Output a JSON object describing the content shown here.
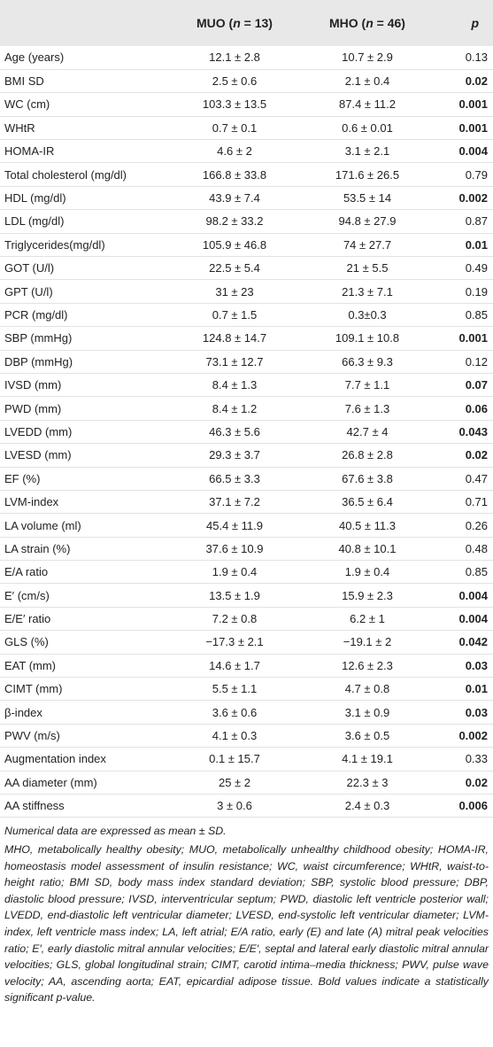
{
  "table": {
    "header": [
      [
        ""
      ],
      [
        "MUO (",
        "n",
        " = 13)"
      ],
      [
        "MHO (",
        "n",
        " = 46)"
      ],
      [
        "p"
      ]
    ],
    "rows": [
      [
        "Age (years)",
        "12.1 ± 2.8",
        "10.7 ± 2.9",
        "0.13"
      ],
      [
        "BMI SD",
        "2.5 ± 0.6",
        "2.1 ± 0.4",
        "0.02"
      ],
      [
        "WC (cm)",
        "103.3 ± 13.5",
        "87.4 ± 11.2",
        "0.001"
      ],
      [
        "WHtR",
        "0.7 ± 0.1",
        "0.6 ± 0.01",
        "0.001"
      ],
      [
        "HOMA-IR",
        "4.6 ± 2",
        "3.1 ± 2.1",
        "0.004"
      ],
      [
        "Total cholesterol (mg/dl)",
        "166.8 ± 33.8",
        "171.6 ± 26.5",
        "0.79"
      ],
      [
        "HDL (mg/dl)",
        "43.9 ± 7.4",
        "53.5 ± 14",
        "0.002"
      ],
      [
        "LDL (mg/dl)",
        "98.2 ± 33.2",
        "94.8 ± 27.9",
        "0.87"
      ],
      [
        "Triglycerides(mg/dl)",
        "105.9 ± 46.8",
        "74 ± 27.7",
        "0.01"
      ],
      [
        "GOT (U/l)",
        "22.5 ± 5.4",
        "21 ± 5.5",
        "0.49"
      ],
      [
        "GPT (U/l)",
        "31 ± 23",
        "21.3 ± 7.1",
        "0.19"
      ],
      [
        "PCR (mg/dl)",
        "0.7 ± 1.5",
        "0.3±0.3",
        "0.85"
      ],
      [
        "SBP (mmHg)",
        "124.8 ± 14.7",
        "109.1 ± 10.8",
        "0.001"
      ],
      [
        "DBP (mmHg)",
        "73.1 ± 12.7",
        "66.3 ± 9.3",
        "0.12"
      ],
      [
        "IVSD (mm)",
        "8.4 ± 1.3",
        "7.7 ± 1.1",
        "0.07"
      ],
      [
        "PWD (mm)",
        "8.4 ± 1.2",
        "7.6 ± 1.3",
        "0.06"
      ],
      [
        "LVEDD (mm)",
        "46.3 ± 5.6",
        "42.7 ± 4",
        "0.043"
      ],
      [
        "LVESD (mm)",
        "29.3 ± 3.7",
        "26.8 ± 2.8",
        "0.02"
      ],
      [
        "EF (%)",
        "66.5 ± 3.3",
        "67.6 ± 3.8",
        "0.47"
      ],
      [
        "LVM-index",
        "37.1 ± 7.2",
        "36.5 ± 6.4",
        "0.71"
      ],
      [
        "LA volume (ml)",
        "45.4 ± 11.9",
        "40.5 ± 11.3",
        "0.26"
      ],
      [
        "LA strain (%)",
        "37.6 ± 10.9",
        "40.8 ± 10.1",
        "0.48"
      ],
      [
        "E/A ratio",
        "1.9 ± 0.4",
        "1.9 ± 0.4",
        "0.85"
      ],
      [
        "E′ (cm/s)",
        "13.5 ± 1.9",
        "15.9 ± 2.3",
        "0.004"
      ],
      [
        "E/E′ ratio",
        "7.2 ± 0.8",
        "6.2 ± 1",
        "0.004"
      ],
      [
        "GLS (%)",
        "−17.3 ± 2.1",
        "−19.1 ± 2",
        "0.042"
      ],
      [
        "EAT (mm)",
        "14.6 ± 1.7",
        "12.6 ± 2.3",
        "0.03"
      ],
      [
        "CIMT (mm)",
        "5.5 ± 1.1",
        "4.7 ± 0.8",
        "0.01"
      ],
      [
        "β-index",
        "3.6 ± 0.6",
        "3.1 ± 0.9",
        "0.03"
      ],
      [
        "PWV (m/s)",
        "4.1 ± 0.3",
        "3.6 ± 0.5",
        "0.002"
      ],
      [
        "Augmentation index",
        "0.1 ± 15.7",
        "4.1 ± 19.1",
        "0.33"
      ],
      [
        "AA diameter (mm)",
        "25 ± 2",
        "22.3 ± 3",
        "0.02"
      ],
      [
        "AA stiffness",
        "3 ± 0.6",
        "2.4 ± 0.3",
        "0.006"
      ]
    ],
    "significant": [
      false,
      true,
      true,
      true,
      true,
      false,
      true,
      false,
      true,
      false,
      false,
      false,
      true,
      false,
      true,
      true,
      true,
      true,
      false,
      false,
      false,
      false,
      false,
      true,
      true,
      true,
      true,
      true,
      true,
      true,
      false,
      true,
      true
    ]
  },
  "notes": [
    "Numerical data are expressed as mean ± SD.",
    "MHO, metabolically healthy obesity; MUO, metabolically unhealthy childhood obesity; HOMA-IR, homeostasis model assessment of insulin resistance; WC, waist circumference; WHtR, waist-to-height ratio; BMI SD, body mass index standard deviation; SBP, systolic blood pressure; DBP, diastolic blood pressure; IVSD, interventricular septum; PWD, diastolic left ventricle posterior wall; LVEDD, end-diastolic left ventricular diameter; LVESD, end-systolic left ventricular diameter; LVM-index, left ventricle mass index; LA, left atrial; E/A ratio, early (E) and late (A) mitral peak velocities ratio; E′, early diastolic mitral annular velocities; E/E′, septal and lateral early diastolic mitral annular velocities; GLS, global longitudinal strain; CIMT, carotid intima–media thickness; PWV, pulse wave velocity; AA, ascending aorta; EAT, epicardial adipose tissue. Bold values indicate a statistically significant p-value."
  ]
}
